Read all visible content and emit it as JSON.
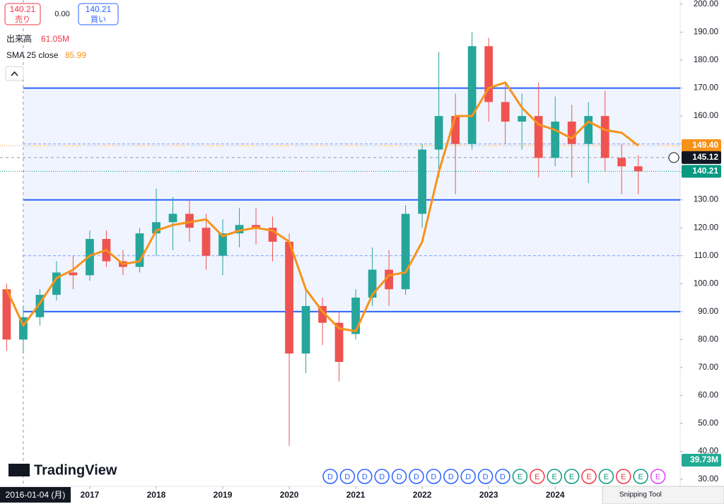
{
  "toolbar": {
    "sell_price": "140.21",
    "sell_label": "売り",
    "spread": "0.00",
    "buy_price": "140.21",
    "buy_label": "買い",
    "volume_label": "出来高",
    "volume_value": "61.05M",
    "sma_label": "SMA 25 close",
    "sma_value": "85.99",
    "logo": "TradingView",
    "snipping": "Snipping Tool",
    "volume_tag": "39.73M"
  },
  "chart_data": {
    "type": "candlestick",
    "x": [
      2015.75,
      2016.0,
      2016.25,
      2016.5,
      2016.75,
      2017.0,
      2017.25,
      2017.5,
      2017.75,
      2018.0,
      2018.25,
      2018.5,
      2018.75,
      2019.0,
      2019.25,
      2019.5,
      2019.75,
      2020.0,
      2020.25,
      2020.5,
      2020.75,
      2021.0,
      2021.25,
      2021.5,
      2021.75,
      2022.0,
      2022.25,
      2022.5,
      2022.75,
      2023.0,
      2023.25,
      2023.5,
      2023.75,
      2024.0,
      2024.25,
      2024.5,
      2024.75,
      2025.0,
      2025.25
    ],
    "open": [
      98,
      80,
      88,
      96,
      104,
      103,
      116,
      108,
      106,
      118,
      122,
      125,
      120,
      110,
      118,
      121,
      120,
      115,
      75,
      92,
      86,
      82,
      95,
      105,
      98,
      125,
      148,
      160,
      150,
      185,
      165,
      158,
      160,
      145,
      158,
      150,
      160,
      145,
      142
    ],
    "high": [
      100,
      92,
      98,
      108,
      110,
      119,
      119,
      112,
      120,
      134,
      131,
      130,
      125,
      123,
      127,
      127,
      124,
      118,
      98,
      95,
      90,
      98,
      113,
      112,
      128,
      150,
      183,
      168,
      190,
      188,
      172,
      168,
      172,
      167,
      164,
      165,
      169,
      150,
      146
    ],
    "low": [
      76,
      75,
      85,
      94,
      98,
      101,
      106,
      103,
      104,
      110,
      112,
      115,
      105,
      103,
      113,
      114,
      108,
      42,
      68,
      78,
      65,
      80,
      92,
      92,
      96,
      120,
      138,
      132,
      148,
      158,
      150,
      148,
      138,
      142,
      138,
      136,
      140,
      132,
      132
    ],
    "close": [
      80,
      88,
      96,
      104,
      103,
      116,
      108,
      106,
      118,
      122,
      125,
      120,
      110,
      118,
      121,
      120,
      115,
      75,
      92,
      86,
      72,
      95,
      105,
      98,
      125,
      148,
      160,
      150,
      185,
      165,
      158,
      160,
      145,
      158,
      150,
      160,
      145,
      142,
      140.21
    ],
    "up_color": "#26a69a",
    "down_color": "#ef5350",
    "series": [
      {
        "name": "SMA 25 close",
        "color": "#f7931a",
        "values": [
          98,
          85,
          93,
          102,
          105,
          110,
          112,
          107,
          108,
          119,
          121,
          122,
          123,
          117,
          119,
          120,
          119,
          115,
          98,
          90,
          84,
          83,
          96,
          103,
          104,
          115,
          140,
          160,
          160,
          170,
          172,
          163,
          157,
          155,
          152,
          158,
          155,
          154,
          149.4
        ]
      }
    ],
    "xlim": [
      2015.65,
      2025.88
    ],
    "xticks": [
      2017,
      2018,
      2019,
      2020,
      2021,
      2022,
      2023,
      2024
    ],
    "ylim": [
      30,
      200
    ],
    "yticks": [
      {
        "value": 30,
        "label": "30.00"
      },
      {
        "value": 40,
        "label": "40.00"
      },
      {
        "value": 50,
        "label": "50.00"
      },
      {
        "value": 60,
        "label": "60.00"
      },
      {
        "value": 70,
        "label": "70.00"
      },
      {
        "value": 80,
        "label": "80.00"
      },
      {
        "value": 90,
        "label": "90.00"
      },
      {
        "value": 100,
        "label": "100.00"
      },
      {
        "value": 110,
        "label": "110.00"
      },
      {
        "value": 120,
        "label": "120.00"
      },
      {
        "value": 130,
        "label": "130.00"
      },
      {
        "value": 140,
        "label": "140.00"
      },
      {
        "value": 150,
        "label": "150.00"
      },
      {
        "value": 160,
        "label": "160.00"
      },
      {
        "value": 170,
        "label": "170.00"
      },
      {
        "value": 180,
        "label": "180.00"
      },
      {
        "value": 190,
        "label": "190.00"
      },
      {
        "value": 200,
        "label": "200.00"
      }
    ],
    "grid": false,
    "levels": [
      170,
      130,
      90
    ],
    "level_color": "#2962ff",
    "band": [
      90,
      170
    ],
    "dashed_levels": [
      150,
      110
    ],
    "crosshair": {
      "x": 2016.0,
      "x_label": "2016-01-04 (月)",
      "y": 145.12,
      "y_label": "145.12"
    },
    "price_tags": [
      {
        "value": 149.4,
        "label": "149.40",
        "color": "#f7931a"
      },
      {
        "value": 140.21,
        "label": "140.21",
        "color": "#089981"
      }
    ],
    "events": [
      {
        "label": "D",
        "color": "#2962ff"
      },
      {
        "label": "D",
        "color": "#2962ff"
      },
      {
        "label": "D",
        "color": "#2962ff"
      },
      {
        "label": "D",
        "color": "#2962ff"
      },
      {
        "label": "D",
        "color": "#2962ff"
      },
      {
        "label": "D",
        "color": "#2962ff"
      },
      {
        "label": "D",
        "color": "#2962ff"
      },
      {
        "label": "D",
        "color": "#2962ff"
      },
      {
        "label": "D",
        "color": "#2962ff"
      },
      {
        "label": "D",
        "color": "#2962ff"
      },
      {
        "label": "D",
        "color": "#2962ff"
      },
      {
        "label": "E",
        "color": "#089981"
      },
      {
        "label": "E",
        "color": "#f23645"
      },
      {
        "label": "E",
        "color": "#089981"
      },
      {
        "label": "E",
        "color": "#089981"
      },
      {
        "label": "E",
        "color": "#f23645"
      },
      {
        "label": "E",
        "color": "#089981"
      },
      {
        "label": "E",
        "color": "#f23645"
      },
      {
        "label": "E",
        "color": "#089981"
      },
      {
        "label": "E",
        "color": "#e040fb"
      }
    ]
  }
}
